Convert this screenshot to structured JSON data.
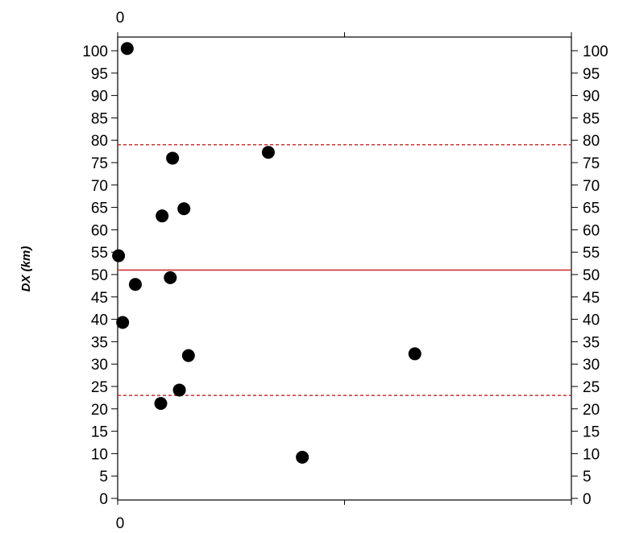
{
  "chart_data": {
    "type": "scatter",
    "title": "",
    "xlabel": "",
    "ylabel": "DX (km)",
    "xlim": [
      0,
      100
    ],
    "ylim": [
      0,
      100
    ],
    "x_tick_labels": [
      "0"
    ],
    "y_ticks": [
      0,
      5,
      10,
      15,
      20,
      25,
      30,
      35,
      40,
      45,
      50,
      55,
      60,
      65,
      70,
      75,
      80,
      85,
      90,
      95,
      100
    ],
    "grid": false,
    "right_axis_mirror": true,
    "reference_lines": [
      {
        "y": 51,
        "style": "solid",
        "color": "#cc3333"
      },
      {
        "y": 79,
        "style": "dashed",
        "color": "#cc3333"
      },
      {
        "y": 23,
        "style": "dashed",
        "color": "#cc3333"
      }
    ],
    "series": [
      {
        "marker_color": "#000000",
        "points": [
          {
            "x": 2.1,
            "y": 100.5
          },
          {
            "x": 33.2,
            "y": 77.3
          },
          {
            "x": 12.1,
            "y": 76.0
          },
          {
            "x": 14.6,
            "y": 64.7
          },
          {
            "x": 9.8,
            "y": 63.1
          },
          {
            "x": 0.2,
            "y": 54.2
          },
          {
            "x": 11.6,
            "y": 49.3
          },
          {
            "x": 3.9,
            "y": 47.8
          },
          {
            "x": 1.1,
            "y": 39.3
          },
          {
            "x": 15.6,
            "y": 31.9
          },
          {
            "x": 65.5,
            "y": 32.3
          },
          {
            "x": 13.6,
            "y": 24.2
          },
          {
            "x": 9.5,
            "y": 21.2
          },
          {
            "x": 40.7,
            "y": 9.2
          }
        ]
      }
    ]
  }
}
